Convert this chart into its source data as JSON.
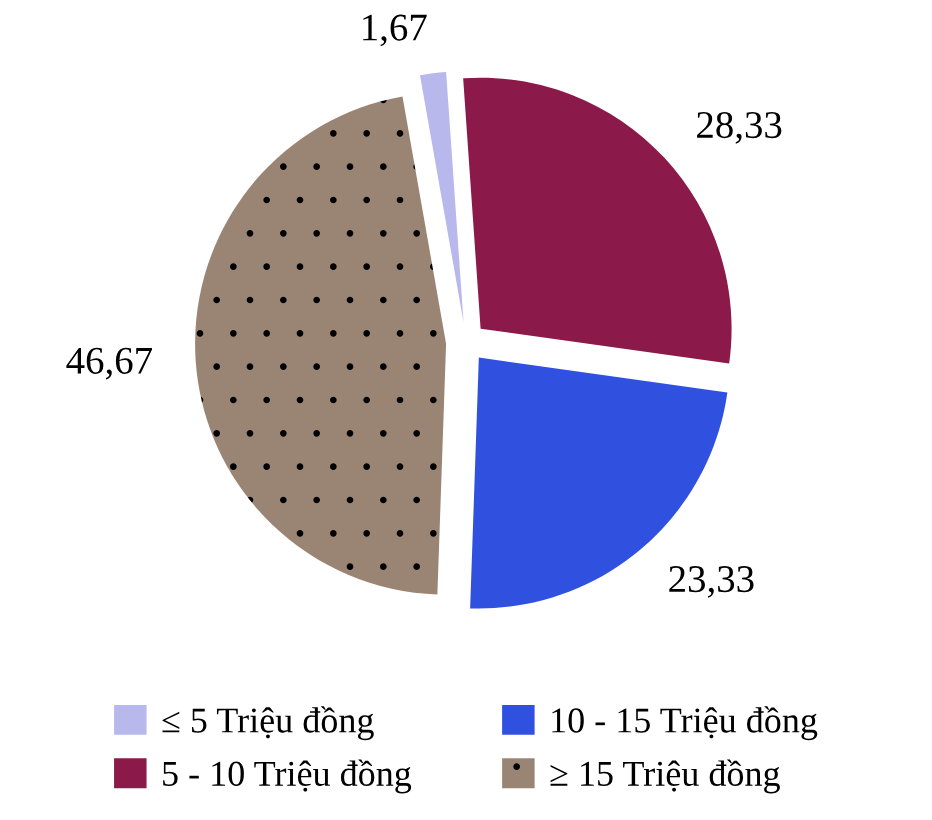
{
  "chart_data": {
    "type": "pie",
    "categories": [
      "≤ 5 Triệu đồng",
      "5 - 10 Triệu đồng",
      "10 - 15 Triệu đồng",
      "≥ 15 Triệu đồng"
    ],
    "values": [
      1.67,
      28.33,
      23.33,
      46.67
    ],
    "value_labels": [
      "1,67",
      "28,33",
      "23,33",
      "46,67"
    ],
    "colors": [
      "#b8b8ec",
      "#8b1a4a",
      "#3050e0",
      "#9a8575"
    ],
    "legend": "bottom"
  }
}
